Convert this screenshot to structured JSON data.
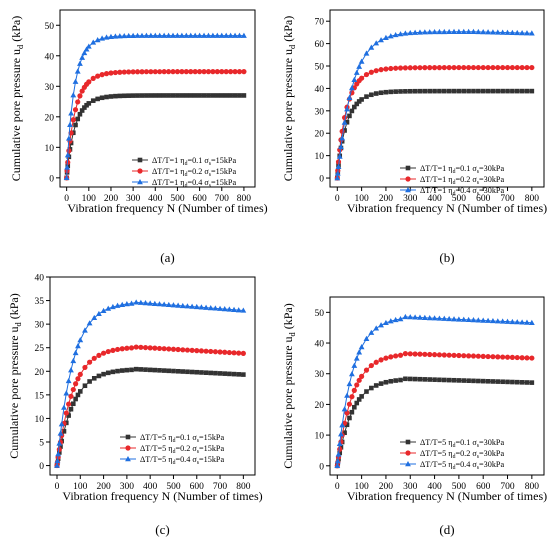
{
  "chart_data": [
    {
      "type": "line",
      "panel_label": "(a)",
      "xlabel": "Vibration frequency N (Number of times)",
      "ylabel": {
        "main": "Cumulative pore pressure u",
        "sub": "d",
        "unit": " (kPa)"
      },
      "xlim": [
        -30,
        850
      ],
      "ylim": [
        -3,
        55
      ],
      "xticks": [
        0,
        100,
        200,
        300,
        400,
        500,
        600,
        700,
        800
      ],
      "yticks": [
        0,
        10,
        20,
        30,
        40,
        50
      ],
      "legend_position": "right",
      "series": [
        {
          "name": "ΔT/T=1 η",
          "name_sub": "d",
          "name_tail": "=0.1 σ",
          "name_sub2": "s",
          "name_end": "=15kPa",
          "color": "#333333",
          "marker": "square",
          "asymptote": 27,
          "k": 20
        },
        {
          "name": "ΔT/T=1 η",
          "name_sub": "d",
          "name_tail": "=0.2 σ",
          "name_sub2": "s",
          "name_end": "=15kPa",
          "color": "#e8282b",
          "marker": "circle",
          "asymptote": 34.8,
          "k": 20
        },
        {
          "name": "ΔT/T=1 η",
          "name_sub": "d",
          "name_tail": "=0.4 σ",
          "name_sub2": "s",
          "name_end": "=15kPa",
          "color": "#1f6fe0",
          "marker": "triangle",
          "asymptote": 46.6,
          "k": 18
        }
      ]
    },
    {
      "type": "line",
      "panel_label": "(b)",
      "xlabel": "Vibration frequency N (Number of times)",
      "ylabel": {
        "main": "Cumulative pore pressure u",
        "sub": "d",
        "unit": " (kPa)"
      },
      "xlim": [
        -30,
        850
      ],
      "ylim": [
        -4,
        75
      ],
      "xticks": [
        0,
        100,
        200,
        300,
        400,
        500,
        600,
        700,
        800
      ],
      "yticks": [
        0,
        10,
        20,
        30,
        40,
        50,
        60,
        70
      ],
      "legend_position": "right",
      "series": [
        {
          "name": "ΔT/T=1 η",
          "name_sub": "d",
          "name_tail": "=0.1 σ",
          "name_sub2": "s",
          "name_end": "=30kPa",
          "color": "#333333",
          "marker": "square",
          "asymptote": 38.8,
          "k": 20
        },
        {
          "name": "ΔT/T=1 η",
          "name_sub": "d",
          "name_tail": "=0.2 σ",
          "name_sub2": "s",
          "name_end": "=30kPa",
          "color": "#e8282b",
          "marker": "circle",
          "asymptote": 49.3,
          "k": 20
        },
        {
          "name": "ΔT/T=1 η",
          "name_sub": "d",
          "name_tail": "=0.4 σ",
          "name_sub2": "s",
          "name_end": "=30kPa",
          "color": "#1f6fe0",
          "marker": "triangle",
          "asymptote": 64.6,
          "k": 22,
          "peak": 65.3,
          "peakN": 550
        }
      ]
    },
    {
      "type": "line",
      "panel_label": "(c)",
      "xlabel": "Vibration frequency N (Number of times)",
      "ylabel": {
        "main": "Cumulative pore pressure u",
        "sub": "d",
        "unit": " (kPa)"
      },
      "xlim": [
        -30,
        850
      ],
      "ylim": [
        -2,
        40
      ],
      "xticks": [
        0,
        100,
        200,
        300,
        400,
        500,
        600,
        700,
        800
      ],
      "yticks": [
        0,
        5,
        10,
        15,
        20,
        25,
        30,
        35,
        40
      ],
      "legend_position": "bottom-right",
      "series": [
        {
          "name": "ΔT/T=5 η",
          "name_sub": "d",
          "name_tail": "=0.1 σ",
          "name_sub2": "s",
          "name_end": "=15kPa",
          "color": "#333333",
          "marker": "square",
          "asymptote": 19.3,
          "k": 24,
          "peak": 20.5,
          "peakN": 320
        },
        {
          "name": "ΔT/T=5 η",
          "name_sub": "d",
          "name_tail": "=0.2 σ",
          "name_sub2": "s",
          "name_end": "=15kPa",
          "color": "#e8282b",
          "marker": "circle",
          "asymptote": 23.8,
          "k": 24,
          "peak": 25.2,
          "peakN": 320
        },
        {
          "name": "ΔT/T=5 η",
          "name_sub": "d",
          "name_tail": "=0.4 σ",
          "name_sub2": "s",
          "name_end": "=15kPa",
          "color": "#1f6fe0",
          "marker": "triangle",
          "asymptote": 32.9,
          "k": 24,
          "peak": 34.7,
          "peakN": 320
        }
      ]
    },
    {
      "type": "line",
      "panel_label": "(d)",
      "xlabel": "Vibration frequency N (Number of times)",
      "ylabel": {
        "main": "Cumulative pore pressure u",
        "sub": "d",
        "unit": " (kPa)"
      },
      "xlim": [
        -30,
        850
      ],
      "ylim": [
        -3,
        55
      ],
      "xticks": [
        0,
        100,
        200,
        300,
        400,
        500,
        600,
        700,
        800
      ],
      "yticks": [
        0,
        10,
        20,
        30,
        40,
        50
      ],
      "legend_position": "bottom-right",
      "series": [
        {
          "name": "ΔT/T=5 η",
          "name_sub": "d",
          "name_tail": "=0.1 σ",
          "name_sub2": "s",
          "name_end": "=30kPa",
          "color": "#333333",
          "marker": "square",
          "asymptote": 27.1,
          "k": 22,
          "peak": 28.4,
          "peakN": 260
        },
        {
          "name": "ΔT/T=5 η",
          "name_sub": "d",
          "name_tail": "=0.2 σ",
          "name_sub2": "s",
          "name_end": "=30kPa",
          "color": "#e8282b",
          "marker": "circle",
          "asymptote": 35.1,
          "k": 22,
          "peak": 36.6,
          "peakN": 260
        },
        {
          "name": "ΔT/T=5 η",
          "name_sub": "d",
          "name_tail": "=0.4 σ",
          "name_sub2": "s",
          "name_end": "=30kPa",
          "color": "#1f6fe0",
          "marker": "triangle",
          "asymptote": 46.6,
          "k": 22,
          "peak": 48.6,
          "peakN": 260
        }
      ]
    }
  ]
}
